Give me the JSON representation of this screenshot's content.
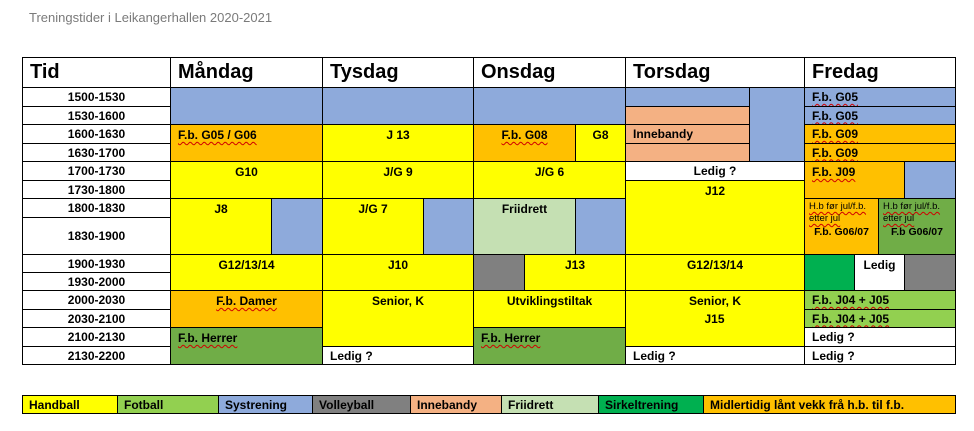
{
  "title": "Treningstider i Leikangerhallen 2020-2021",
  "header": {
    "tid": "Tid",
    "days": [
      "Måndag",
      "Tysdag",
      "Onsdag",
      "Torsdag",
      "Fredag"
    ]
  },
  "times": [
    "1500-1530",
    "1530-1600",
    "1600-1630",
    "1630-1700",
    "1700-1730",
    "1730-1800",
    "1800-1830",
    "1830-1900",
    "1900-1930",
    "1930-2000",
    "2000-2030",
    "2030-2100",
    "2100-2130",
    "2130-2200"
  ],
  "colors": {
    "handball": "#ffff00",
    "fotball": "#92d050",
    "systrening": "#8eaadb",
    "volleyball": "#808080",
    "innebandy": "#f4b183",
    "friidrett": "#c5e0b3",
    "sirkeltrening": "#00b050",
    "midlertidig": "#ffc000",
    "herrer": "#70ad47"
  },
  "cells": {
    "man_g05g06": "F.b. G05 / G06",
    "man_g10": "G10",
    "man_j8": "J8",
    "man_g12": "G12/13/14",
    "man_damer": "F.b. Damer",
    "man_herrer": "F.b. Herrer",
    "tys_j13": "J 13",
    "tys_jg9": "J/G 9",
    "tys_jg7": "J/G 7",
    "tys_j10": "J10",
    "tys_senior": "Senior, K",
    "tys_ledig": "Ledig ?",
    "ons_g08": "F.b. G08",
    "ons_g8": "G8",
    "ons_jg6": "J/G 6",
    "ons_friidrett": "Friidrett",
    "ons_j13": "J13",
    "ons_utvikling": "Utviklingstiltak",
    "ons_herrer": "F.b. Herrer",
    "tor_innebandy": "Innebandy",
    "tor_ledig1": "Ledig ?",
    "tor_j12": "J12",
    "tor_g12": "G12/13/14",
    "tor_senior": "Senior, K",
    "tor_j15": "J15",
    "tor_ledig2": "Ledig ?",
    "fre_g05a": "F.b. G05",
    "fre_g05b": "F.b. G05",
    "fre_g09a": "F.b. G09",
    "fre_g09b": "F.b. G09",
    "fre_j09": "F.b. J09",
    "fre_hb_left": "H.b før jul/f.b. etter jul",
    "fre_hb_left_b": "F.b. G06/07",
    "fre_hb_right": "H.b før jul/f.b. etter jul",
    "fre_hb_right_b": "F.b G06/07",
    "fre_ledig1": "Ledig",
    "fre_j04a": "F.b. J04 + J05",
    "fre_j04b": "F.b. J04 + J05",
    "fre_ledig2": "Ledig ?",
    "fre_ledig3": "Ledig ?"
  },
  "legend": [
    "Handball",
    "Fotball",
    "Systrening",
    "Volleyball",
    "Innebandy",
    "Friidrett",
    "Sirkeltrening",
    "Midlertidig lånt vekk frå h.b. til f.b."
  ]
}
